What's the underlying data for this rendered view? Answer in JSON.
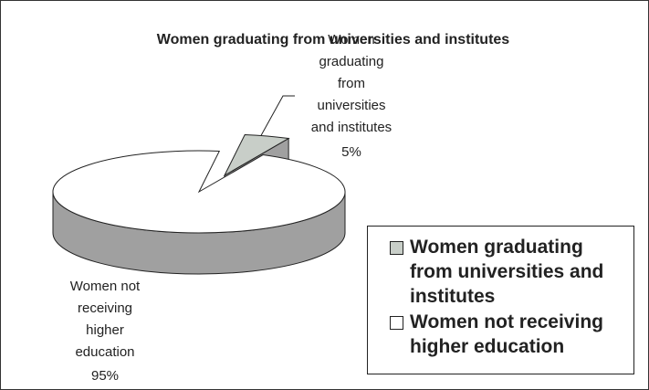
{
  "chart_data": {
    "type": "pie",
    "title": "Women graduating from universities and institutes",
    "categories": [
      "Women graduating from universities and institutes",
      "Women not receiving higher education"
    ],
    "values": [
      5,
      95
    ],
    "value_labels": [
      "5%",
      "95%"
    ],
    "colors": [
      "#c8cec8",
      "#ffffff"
    ],
    "legend": "right"
  }
}
